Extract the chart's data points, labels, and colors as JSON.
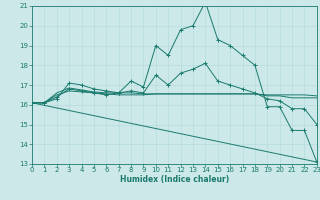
{
  "title": "",
  "xlabel": "Humidex (Indice chaleur)",
  "bg_color": "#cce8e8",
  "line_color": "#1a7a6e",
  "grid_color": "#b0d8d8",
  "xlim": [
    0,
    23
  ],
  "ylim": [
    13,
    21
  ],
  "xticks": [
    0,
    1,
    2,
    3,
    4,
    5,
    6,
    7,
    8,
    9,
    10,
    11,
    12,
    13,
    14,
    15,
    16,
    17,
    18,
    19,
    20,
    21,
    22,
    23
  ],
  "yticks": [
    13,
    14,
    15,
    16,
    17,
    18,
    19,
    20,
    21
  ],
  "lines": [
    {
      "x": [
        0,
        1,
        2,
        3,
        4,
        5,
        6,
        7,
        8,
        9,
        10,
        11,
        12,
        13,
        14,
        15,
        16,
        17,
        18,
        19,
        20,
        21,
        22,
        23
      ],
      "y": [
        16.1,
        16.1,
        16.3,
        17.1,
        17.0,
        16.8,
        16.7,
        16.6,
        17.2,
        16.9,
        19.0,
        18.5,
        19.8,
        20.0,
        21.2,
        19.3,
        19.0,
        18.5,
        18.0,
        15.9,
        15.9,
        14.7,
        14.7,
        13.1
      ],
      "marker": true
    },
    {
      "x": [
        0,
        1,
        2,
        3,
        4,
        5,
        6,
        7,
        8,
        9,
        10,
        11,
        12,
        13,
        14,
        15,
        16,
        17,
        18,
        19,
        20,
        21,
        22,
        23
      ],
      "y": [
        16.1,
        16.1,
        16.5,
        16.7,
        16.65,
        16.6,
        16.55,
        16.5,
        16.5,
        16.5,
        16.55,
        16.55,
        16.55,
        16.55,
        16.55,
        16.55,
        16.55,
        16.55,
        16.55,
        16.5,
        16.5,
        16.5,
        16.5,
        16.45
      ],
      "marker": false
    },
    {
      "x": [
        0,
        1,
        2,
        3,
        4,
        5,
        6,
        7,
        8,
        9,
        10,
        11,
        12,
        13,
        14,
        15,
        16,
        17,
        18,
        19,
        20,
        21,
        22,
        23
      ],
      "y": [
        16.1,
        16.1,
        16.6,
        16.85,
        16.75,
        16.65,
        16.6,
        16.6,
        16.6,
        16.55,
        16.55,
        16.55,
        16.55,
        16.55,
        16.55,
        16.55,
        16.55,
        16.55,
        16.55,
        16.45,
        16.45,
        16.35,
        16.35,
        16.35
      ],
      "marker": false
    },
    {
      "x": [
        0,
        23
      ],
      "y": [
        16.1,
        13.1
      ],
      "marker": false
    },
    {
      "x": [
        0,
        1,
        2,
        3,
        4,
        5,
        6,
        7,
        8,
        9,
        10,
        11,
        12,
        13,
        14,
        15,
        16,
        17,
        18,
        19,
        20,
        21,
        22,
        23
      ],
      "y": [
        16.1,
        16.1,
        16.4,
        16.8,
        16.7,
        16.6,
        16.5,
        16.6,
        16.7,
        16.6,
        17.5,
        17.0,
        17.6,
        17.8,
        18.1,
        17.2,
        17.0,
        16.8,
        16.6,
        16.3,
        16.2,
        15.8,
        15.8,
        15.0
      ],
      "marker": true
    }
  ],
  "xlabel_fontsize": 5.5,
  "tick_fontsize": 5,
  "linewidth": 0.7
}
